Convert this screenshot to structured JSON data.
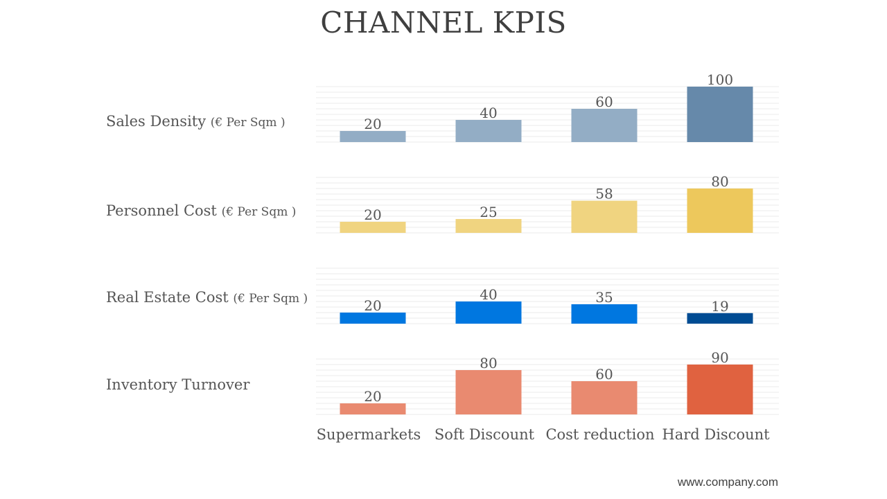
{
  "title": "CHANNEL KPIS",
  "footer": {
    "url": "www.company.com"
  },
  "colors": {
    "text": "#555555",
    "grid": "#ebebeb"
  },
  "chart_data": {
    "type": "bar",
    "title": "CHANNEL KPIS",
    "categories": [
      "Supermarkets",
      "Soft Discount",
      "Cost reduction",
      "Hard Discount"
    ],
    "ylim": [
      0,
      100
    ],
    "grid": true,
    "series": [
      {
        "name": "Sales Density",
        "unit": "(€ Per Sqm )",
        "values": [
          20,
          40,
          60,
          100
        ],
        "colors": [
          "#93adc5",
          "#93adc5",
          "#93adc5",
          "#6689aa"
        ]
      },
      {
        "name": "Personnel Cost",
        "unit": "(€ Per Sqm )",
        "values": [
          20,
          25,
          58,
          80
        ],
        "colors": [
          "#f0d480",
          "#f0d480",
          "#f0d480",
          "#edc85c"
        ]
      },
      {
        "name": "Real Estate Cost",
        "unit": "(€ Per Sqm )",
        "values": [
          20,
          40,
          35,
          19
        ],
        "colors": [
          "#0077e0",
          "#0077e0",
          "#0077e0",
          "#004c93"
        ]
      },
      {
        "name": "Inventory Turnover",
        "unit": "",
        "values": [
          20,
          80,
          60,
          90
        ],
        "colors": [
          "#e98a70",
          "#e98a70",
          "#e98a70",
          "#e06240"
        ]
      }
    ]
  }
}
